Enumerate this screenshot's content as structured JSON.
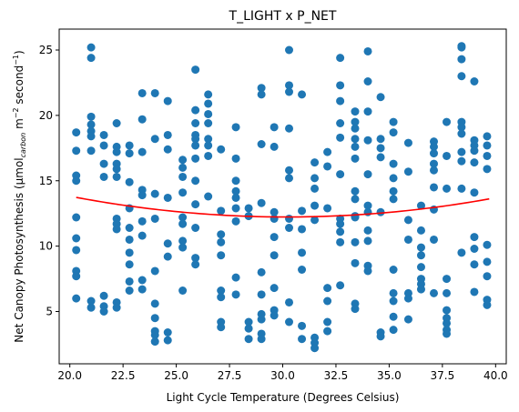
{
  "chart_data": {
    "type": "scatter",
    "title": "T_LIGHT x P_NET",
    "xlabel": "Light Cycle Temperature (Degrees Celsius)",
    "ylabel": {
      "prefix": "Net Canopy Photosynthesis (μmol",
      "sub": "carbon",
      "mid1": " m",
      "sup1": "−2",
      "mid2": " second",
      "sup2": "−1",
      "suffix": ")"
    },
    "xlim": [
      19.5,
      40.5
    ],
    "ylim": [
      1.0,
      26.6
    ],
    "xticks": [
      20.0,
      22.5,
      25.0,
      27.5,
      30.0,
      32.5,
      35.0,
      37.5,
      40.0
    ],
    "xtick_labels": [
      "20.0",
      "22.5",
      "25.0",
      "27.5",
      "30.0",
      "32.5",
      "35.0",
      "37.5",
      "40.0"
    ],
    "yticks": [
      5,
      10,
      15,
      20,
      25
    ],
    "ytick_labels": [
      "5",
      "10",
      "15",
      "20",
      "25"
    ],
    "grid": false,
    "marker_color": "#1f77b4",
    "fit_color": "#ff0000",
    "fit_curve": {
      "type": "quadratic",
      "coefficients": [
        0.0153,
        -0.924,
        26.18
      ],
      "x_range": [
        20.3,
        39.7
      ]
    },
    "columns": [
      {
        "x": 20.3,
        "y": [
          18.7,
          17.3,
          15.4,
          15.0,
          12.2,
          10.6,
          9.7,
          8.1,
          7.7,
          6.0
        ]
      },
      {
        "x": 21.0,
        "y": [
          25.2,
          24.4,
          19.9,
          19.3,
          18.8,
          18.4,
          17.3,
          5.8,
          5.3
        ]
      },
      {
        "x": 21.6,
        "y": [
          18.5,
          17.7,
          16.3,
          15.3,
          6.2,
          5.4,
          5.0
        ]
      },
      {
        "x": 22.2,
        "y": [
          19.4,
          17.6,
          17.2,
          16.3,
          15.9,
          15.3,
          12.1,
          11.7,
          11.3,
          5.7,
          5.3
        ]
      },
      {
        "x": 22.8,
        "y": [
          17.7,
          17.1,
          14.9,
          12.9,
          11.4,
          10.5,
          9.5,
          8.6,
          7.3,
          6.6
        ]
      },
      {
        "x": 23.4,
        "y": [
          21.7,
          19.7,
          17.2,
          14.3,
          13.9,
          11.9,
          10.8,
          7.4,
          6.7
        ]
      },
      {
        "x": 24.0,
        "y": [
          21.7,
          18.2,
          14.0,
          12.1,
          8.1,
          5.6,
          4.5,
          3.5,
          3.2,
          2.7
        ]
      },
      {
        "x": 24.6,
        "y": [
          21.1,
          18.5,
          17.4,
          13.7,
          10.2,
          9.2,
          3.4,
          2.8
        ]
      },
      {
        "x": 25.3,
        "y": [
          16.6,
          16.0,
          15.3,
          14.1,
          12.2,
          11.7,
          10.4,
          9.9,
          6.6
        ]
      },
      {
        "x": 25.9,
        "y": [
          23.5,
          20.4,
          19.4,
          18.5,
          18.2,
          17.7,
          16.7,
          15.0,
          13.2,
          11.4,
          9.1,
          8.6
        ]
      },
      {
        "x": 26.5,
        "y": [
          21.6,
          20.9,
          20.1,
          19.4,
          18.2,
          17.7,
          16.9,
          13.8
        ]
      },
      {
        "x": 27.1,
        "y": [
          17.4,
          12.7,
          10.9,
          10.3,
          9.3,
          6.6,
          6.1,
          4.2,
          3.8
        ]
      },
      {
        "x": 27.8,
        "y": [
          19.1,
          16.7,
          15.0,
          14.2,
          13.7,
          12.9,
          11.9,
          7.6,
          6.3
        ]
      },
      {
        "x": 28.4,
        "y": [
          12.9,
          12.3,
          4.2,
          3.7,
          2.9
        ]
      },
      {
        "x": 29.0,
        "y": [
          22.1,
          21.6,
          17.8,
          13.3,
          8.0,
          6.3,
          4.8,
          4.4,
          3.3,
          2.9
        ]
      },
      {
        "x": 29.6,
        "y": [
          19.1,
          17.6,
          12.6,
          12.1,
          10.7,
          9.3,
          6.8,
          5.1,
          4.7
        ]
      },
      {
        "x": 30.3,
        "y": [
          25.0,
          22.3,
          21.8,
          19.0,
          15.8,
          15.2,
          12.1,
          11.4,
          5.7,
          4.2
        ]
      },
      {
        "x": 30.9,
        "y": [
          21.6,
          12.7,
          11.3,
          9.5,
          8.2,
          3.9,
          2.9
        ]
      },
      {
        "x": 31.5,
        "y": [
          16.4,
          15.2,
          14.4,
          13.1,
          12.0,
          3.0,
          2.6,
          2.2
        ]
      },
      {
        "x": 32.1,
        "y": [
          17.2,
          16.1,
          12.9,
          6.8,
          5.8,
          4.2,
          3.5
        ]
      },
      {
        "x": 32.7,
        "y": [
          24.4,
          22.3,
          21.1,
          19.4,
          18.3,
          15.5,
          12.1,
          11.7,
          11.1,
          10.3,
          7.0
        ]
      },
      {
        "x": 33.4,
        "y": [
          20.3,
          19.5,
          19.0,
          18.2,
          17.6,
          16.7,
          14.2,
          13.6,
          12.3,
          12.2,
          10.3,
          8.7,
          5.6,
          5.2
        ]
      },
      {
        "x": 34.0,
        "y": [
          24.9,
          22.6,
          20.3,
          18.1,
          15.5,
          13.1,
          12.6,
          11.2,
          10.4,
          8.5,
          8.1
        ]
      },
      {
        "x": 34.6,
        "y": [
          21.4,
          18.2,
          17.5,
          16.8,
          12.6,
          3.4,
          3.1
        ]
      },
      {
        "x": 35.2,
        "y": [
          19.5,
          18.7,
          16.3,
          15.2,
          14.2,
          13.6,
          8.2,
          6.4,
          5.8,
          4.6,
          3.6
        ]
      },
      {
        "x": 35.9,
        "y": [
          17.9,
          15.7,
          12.0,
          10.5,
          6.4,
          6.0,
          4.4
        ]
      },
      {
        "x": 36.5,
        "y": [
          13.1,
          11.2,
          9.9,
          9.3,
          8.4,
          7.5,
          7.1,
          6.7
        ]
      },
      {
        "x": 37.1,
        "y": [
          18.0,
          17.6,
          17.1,
          16.3,
          15.8,
          14.5,
          12.8,
          10.5,
          6.4
        ]
      },
      {
        "x": 37.7,
        "y": [
          19.5,
          16.9,
          14.4,
          7.5,
          6.4,
          5.1,
          4.5,
          4.1,
          3.6,
          3.3
        ]
      },
      {
        "x": 38.4,
        "y": [
          25.3,
          25.2,
          24.3,
          23.0,
          19.5,
          19.1,
          18.6,
          17.2,
          16.5,
          14.4,
          9.5
        ]
      },
      {
        "x": 39.0,
        "y": [
          22.6,
          18.1,
          17.7,
          17.3,
          16.4,
          14.1,
          10.7,
          9.8,
          8.6,
          6.5
        ]
      },
      {
        "x": 39.6,
        "y": [
          18.4,
          17.7,
          16.9,
          15.9,
          10.1,
          8.8,
          7.7,
          5.9,
          5.5
        ]
      }
    ]
  }
}
